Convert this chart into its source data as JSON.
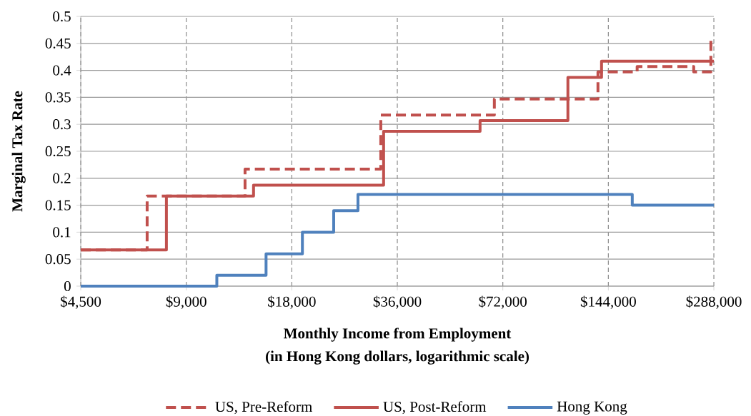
{
  "chart_data": {
    "type": "step",
    "xlabel": "Monthly Income from Employment",
    "ylabel": "Marginal Tax Rate",
    "annotations": [
      "(in Hong Kong dollars, logarithmic scale)"
    ],
    "log": "x",
    "xlim": [
      4500,
      288000
    ],
    "xticks": [
      {
        "value": 4500,
        "label": "$4,500"
      },
      {
        "value": 9000,
        "label": "$9,000"
      },
      {
        "value": 18000,
        "label": "$18,000"
      },
      {
        "value": 36000,
        "label": "$36,000"
      },
      {
        "value": 72000,
        "label": "$72,000"
      },
      {
        "value": 144000,
        "label": "$144,000"
      },
      {
        "value": 288000,
        "label": "$288,000"
      }
    ],
    "ylim": [
      0,
      0.5
    ],
    "yticks": [
      0,
      0.05,
      0.1,
      0.15,
      0.2,
      0.25,
      0.3,
      0.35,
      0.4,
      0.45,
      0.5
    ],
    "grid": true,
    "legend": "bottom",
    "series": [
      {
        "name": "US, Pre-Reform",
        "color": "#c0504d",
        "line_style": "dashed",
        "x": [
          4500,
          6960,
          13240,
          32300,
          68100,
          134500,
          174000,
          252300,
          282400,
          288000
        ],
        "values": [
          0.067,
          0.167,
          0.217,
          0.317,
          0.347,
          0.397,
          0.407,
          0.397,
          0.457,
          0.457
        ]
      },
      {
        "name": "US, Post-Reform",
        "color": "#c0504d",
        "line_style": "solid",
        "x": [
          4500,
          7900,
          14000,
          32900,
          62000,
          110400,
          137700,
          288000
        ],
        "values": [
          0.067,
          0.167,
          0.187,
          0.287,
          0.307,
          0.387,
          0.417,
          0.417
        ]
      },
      {
        "name": "Hong Kong",
        "color": "#4f81bd",
        "line_style": "solid",
        "x": [
          4500,
          11000,
          15200,
          19300,
          23700,
          27800,
          168500,
          288000
        ],
        "values": [
          0,
          0.02,
          0.06,
          0.1,
          0.14,
          0.17,
          0.15,
          0.15
        ]
      }
    ]
  }
}
